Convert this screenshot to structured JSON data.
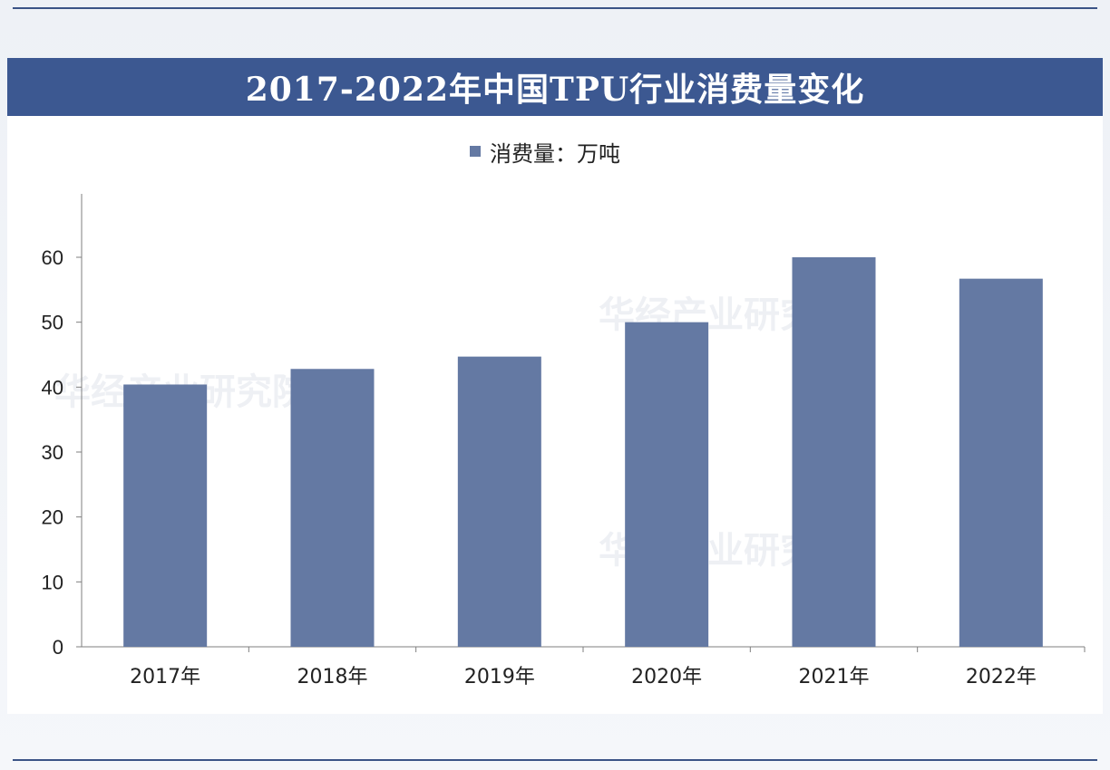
{
  "title": "2017-2022年中国TPU行业消费量变化",
  "legend": {
    "label": "消费量：万吨",
    "color": "#6479a3"
  },
  "watermarks": [
    "华经产业研究院",
    "华经产业研究院",
    "华经产业研究院"
  ],
  "chart_data": {
    "type": "bar",
    "title": "2017-2022年中国TPU行业消费量变化",
    "categories": [
      "2017年",
      "2018年",
      "2019年",
      "2020年",
      "2021年",
      "2022年"
    ],
    "series": [
      {
        "name": "消费量：万吨",
        "values": [
          40.4,
          42.8,
          44.7,
          50.0,
          60.0,
          56.7
        ],
        "color": "#6479a3"
      }
    ],
    "xlabel": "",
    "ylabel": "",
    "ylim": [
      0,
      60
    ],
    "yticks": [
      0,
      10,
      20,
      30,
      40,
      50,
      60
    ],
    "grid": false,
    "legend_position": "top-center"
  }
}
